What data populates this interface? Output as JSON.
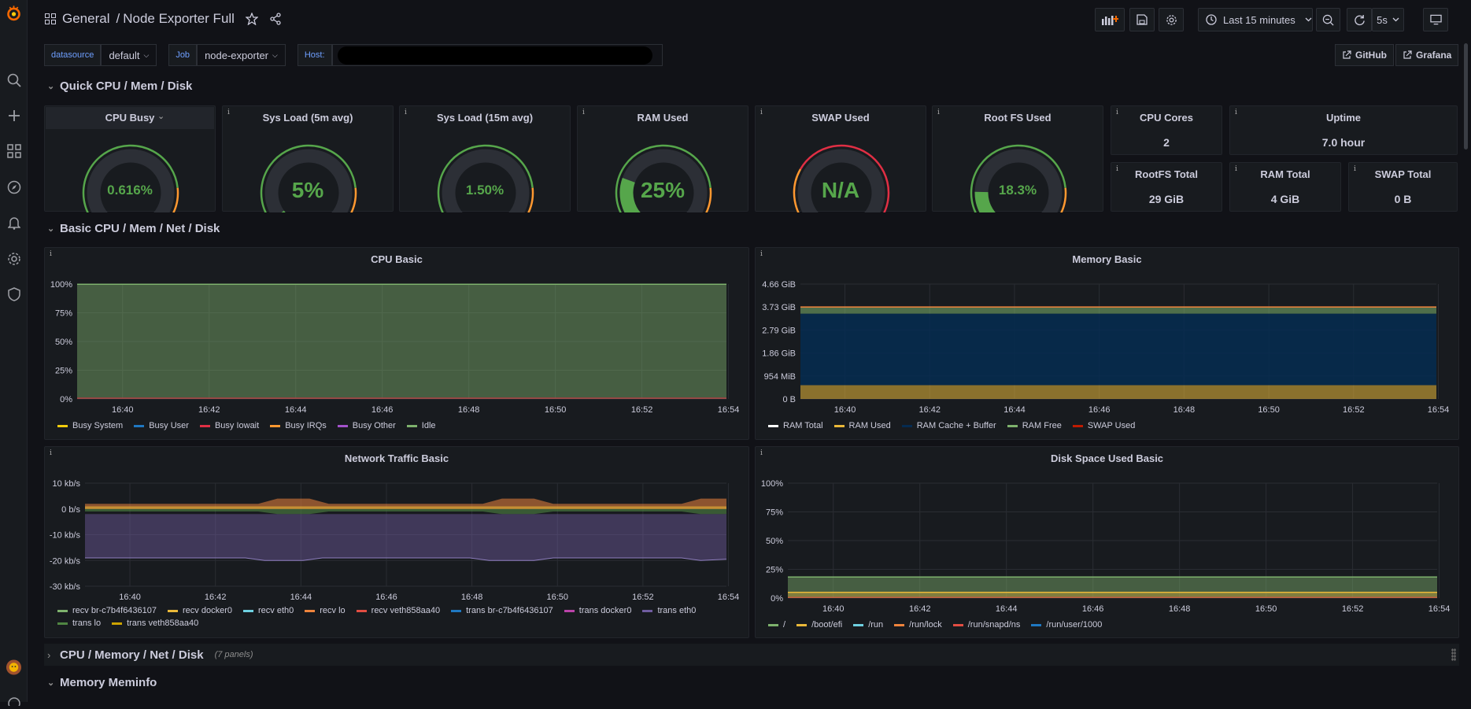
{
  "breadcrumb": {
    "folder": "General",
    "separator": "/",
    "dashboard": "Node Exporter Full"
  },
  "toolbar": {
    "time_range": "Last 15 minutes",
    "refresh_interval": "5s"
  },
  "variables": [
    {
      "label": "datasource",
      "value": "default"
    },
    {
      "label": "Job",
      "value": "node-exporter"
    },
    {
      "label": "Host:",
      "value": ""
    }
  ],
  "links": {
    "github": "GitHub",
    "grafana": "Grafana"
  },
  "rows": {
    "quick": "Quick CPU / Mem / Disk",
    "basic": "Basic CPU / Mem / Net / Disk",
    "cpu_mem": "CPU / Memory / Net / Disk",
    "cpu_mem_count": "(7 panels)",
    "meminfo": "Memory Meminfo"
  },
  "gauges": [
    {
      "title": "CPU Busy",
      "value": "0.616%",
      "fraction": 0.006
    },
    {
      "title": "Sys Load (5m avg)",
      "value": "5%",
      "fraction": 0.05
    },
    {
      "title": "Sys Load (15m avg)",
      "value": "1.50%",
      "fraction": 0.015
    },
    {
      "title": "RAM Used",
      "value": "25%",
      "fraction": 0.25
    },
    {
      "title": "SWAP Used",
      "value": "N/A",
      "fraction": 0
    },
    {
      "title": "Root FS Used",
      "value": "18.3%",
      "fraction": 0.183
    }
  ],
  "stats": [
    {
      "title": "CPU Cores",
      "value": "2"
    },
    {
      "title": "Uptime",
      "value": "7.0 hour"
    },
    {
      "title": "RootFS Total",
      "value": "29 GiB"
    },
    {
      "title": "RAM Total",
      "value": "4 GiB"
    },
    {
      "title": "SWAP Total",
      "value": "0 B"
    }
  ],
  "colors": {
    "green": "#56a64b",
    "orange": "#ff9830",
    "red": "#e02f44",
    "accent": "#f46800"
  },
  "chart_data": [
    {
      "type": "area",
      "title": "CPU Basic",
      "x": [
        "16:40",
        "16:42",
        "16:44",
        "16:46",
        "16:48",
        "16:50",
        "16:52",
        "16:54"
      ],
      "y_ticks": [
        "0%",
        "25%",
        "50%",
        "75%",
        "100%"
      ],
      "ylim": [
        0,
        100
      ],
      "series": [
        {
          "name": "Busy System",
          "color": "#f2cc0c",
          "values": [
            0.3,
            0.3,
            0.3,
            0.3,
            0.3,
            0.3,
            0.3,
            0.3
          ]
        },
        {
          "name": "Busy User",
          "color": "#1f78c1",
          "values": [
            0.3,
            0.3,
            0.3,
            0.3,
            0.3,
            0.3,
            0.3,
            0.3
          ]
        },
        {
          "name": "Busy Iowait",
          "color": "#e02f44",
          "values": [
            0,
            0,
            0,
            0,
            0,
            0,
            0,
            0
          ]
        },
        {
          "name": "Busy IRQs",
          "color": "#ff9830",
          "values": [
            0,
            0,
            0,
            0,
            0,
            0,
            0,
            0
          ]
        },
        {
          "name": "Busy Other",
          "color": "#a352cc",
          "values": [
            0,
            0,
            0,
            0,
            0,
            0,
            0,
            0
          ]
        },
        {
          "name": "Idle",
          "color": "#7eb26d",
          "values": [
            99.4,
            99.4,
            99.4,
            99.4,
            99.4,
            99.4,
            99.4,
            99.4
          ]
        }
      ]
    },
    {
      "type": "area",
      "title": "Memory Basic",
      "x": [
        "16:40",
        "16:42",
        "16:44",
        "16:46",
        "16:48",
        "16:50",
        "16:52",
        "16:54"
      ],
      "y_ticks": [
        "0 B",
        "954 MiB",
        "1.86 GiB",
        "2.79 GiB",
        "3.73 GiB",
        "4.66 GiB"
      ],
      "ylim": [
        0,
        4.66
      ],
      "series": [
        {
          "name": "RAM Total",
          "color": "#ffffff",
          "values": [
            3.73,
            3.73,
            3.73,
            3.73,
            3.73,
            3.73,
            3.73,
            3.73
          ]
        },
        {
          "name": "RAM Used",
          "color": "#eab839",
          "values": [
            0.56,
            0.56,
            0.56,
            0.56,
            0.56,
            0.56,
            0.56,
            0.56
          ]
        },
        {
          "name": "RAM Cache + Buffer",
          "color": "#052b51",
          "values": [
            2.9,
            2.9,
            2.9,
            2.9,
            2.9,
            2.9,
            2.9,
            2.9
          ]
        },
        {
          "name": "RAM Free",
          "color": "#7eb26d",
          "values": [
            0.27,
            0.27,
            0.27,
            0.27,
            0.27,
            0.27,
            0.27,
            0.27
          ]
        },
        {
          "name": "SWAP Used",
          "color": "#bf1b00",
          "values": [
            0,
            0,
            0,
            0,
            0,
            0,
            0,
            0
          ]
        }
      ]
    },
    {
      "type": "area",
      "title": "Network Traffic Basic",
      "x": [
        "16:40",
        "16:42",
        "16:44",
        "16:46",
        "16:48",
        "16:50",
        "16:52",
        "16:54"
      ],
      "y_ticks": [
        "-30 kb/s",
        "-20 kb/s",
        "-10 kb/s",
        "0 b/s",
        "10 kb/s"
      ],
      "ylim": [
        -30,
        10
      ],
      "series": [
        {
          "name": "recv br-c7b4f6436107",
          "color": "#7eb26d"
        },
        {
          "name": "recv docker0",
          "color": "#eab839"
        },
        {
          "name": "recv eth0",
          "color": "#6ed0e0"
        },
        {
          "name": "recv lo",
          "color": "#ef843c"
        },
        {
          "name": "recv veth858aa40",
          "color": "#e24d42"
        },
        {
          "name": "trans br-c7b4f6436107",
          "color": "#1f78c1"
        },
        {
          "name": "trans docker0",
          "color": "#ba43a9"
        },
        {
          "name": "trans eth0",
          "color": "#705da0"
        },
        {
          "name": "trans lo",
          "color": "#508642"
        },
        {
          "name": "trans veth858aa40",
          "color": "#cca300"
        }
      ]
    },
    {
      "type": "area",
      "title": "Disk Space Used Basic",
      "x": [
        "16:40",
        "16:42",
        "16:44",
        "16:46",
        "16:48",
        "16:50",
        "16:52",
        "16:54"
      ],
      "y_ticks": [
        "0%",
        "25%",
        "50%",
        "75%",
        "100%"
      ],
      "ylim": [
        0,
        100
      ],
      "series": [
        {
          "name": "/",
          "color": "#7eb26d",
          "values": [
            18.3,
            18.3,
            18.3,
            18.3,
            18.3,
            18.3,
            18.3,
            18.3
          ]
        },
        {
          "name": "/boot/efi",
          "color": "#eab839",
          "values": [
            5,
            5,
            5,
            5,
            5,
            5,
            5,
            5
          ]
        },
        {
          "name": "/run",
          "color": "#6ed0e0",
          "values": [
            0.5,
            0.5,
            0.5,
            0.5,
            0.5,
            0.5,
            0.5,
            0.5
          ]
        },
        {
          "name": "/run/lock",
          "color": "#ef843c",
          "values": [
            0,
            0,
            0,
            0,
            0,
            0,
            0,
            0
          ]
        },
        {
          "name": "/run/snapd/ns",
          "color": "#e24d42",
          "values": [
            0.5,
            0.5,
            0.5,
            0.5,
            0.5,
            0.5,
            0.5,
            0.5
          ]
        },
        {
          "name": "/run/user/1000",
          "color": "#1f78c1",
          "values": [
            0,
            0,
            0,
            0,
            0,
            0,
            0,
            0
          ]
        }
      ]
    }
  ]
}
